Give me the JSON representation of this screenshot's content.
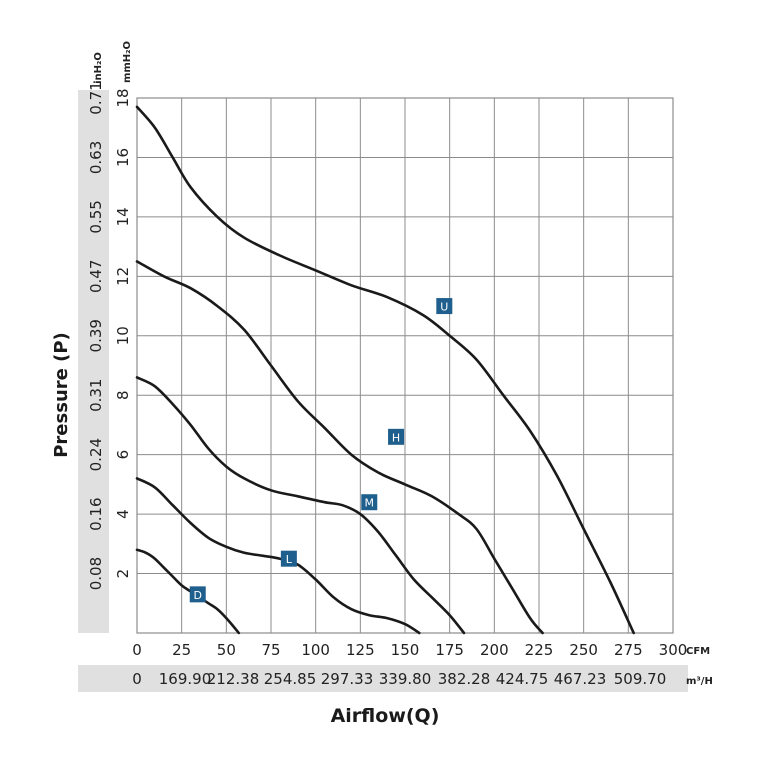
{
  "chart_data": {
    "type": "line",
    "title": "",
    "xlabel": "Airflow(Q)",
    "ylabel": "Pressure (P)",
    "x_unit": "CFM",
    "x_unit2": "m³/H",
    "y_unit": "mmH₂O",
    "y_unit2": "inH₂O",
    "xlim": [
      0,
      300
    ],
    "ylim": [
      0,
      18
    ],
    "grid": true,
    "legend": "none",
    "x_ticks": [
      "0",
      "25",
      "50",
      "75",
      "100",
      "125",
      "150",
      "175",
      "200",
      "225",
      "250",
      "275",
      "300"
    ],
    "x_ticks_secondary": [
      "0",
      "169.90",
      "212.38",
      "254.85",
      "297.33",
      "339.80",
      "382.28",
      "424.75",
      "467.23",
      "509.70"
    ],
    "y_ticks": [
      "2",
      "4",
      "6",
      "8",
      "10",
      "12",
      "14",
      "16",
      "18"
    ],
    "y_ticks_secondary": [
      "0.08",
      "0.16",
      "0.24",
      "0.31",
      "0.39",
      "0.47",
      "0.55",
      "0.63",
      "0.71"
    ],
    "series": [
      {
        "name": "U",
        "label_at": [
          172,
          11.0
        ],
        "x": [
          0,
          10,
          20,
          30,
          45,
          60,
          80,
          100,
          120,
          140,
          160,
          175,
          190,
          205,
          220,
          235,
          250,
          265,
          278
        ],
        "y": [
          17.7,
          17.0,
          16.0,
          15.0,
          14.0,
          13.3,
          12.7,
          12.2,
          11.7,
          11.3,
          10.7,
          10.0,
          9.2,
          8.0,
          6.8,
          5.3,
          3.5,
          1.7,
          0
        ]
      },
      {
        "name": "H",
        "label_at": [
          145,
          6.6
        ],
        "x": [
          0,
          15,
          30,
          45,
          60,
          75,
          90,
          105,
          120,
          135,
          150,
          165,
          180,
          190,
          200,
          210,
          220,
          227
        ],
        "y": [
          12.5,
          12.0,
          11.6,
          11.0,
          10.2,
          9.0,
          7.8,
          6.9,
          6.0,
          5.4,
          5.0,
          4.6,
          4.0,
          3.5,
          2.5,
          1.5,
          0.5,
          0
        ]
      },
      {
        "name": "M",
        "label_at": [
          130,
          4.4
        ],
        "x": [
          0,
          10,
          20,
          30,
          40,
          50,
          60,
          75,
          90,
          105,
          115,
          125,
          135,
          145,
          155,
          165,
          175,
          183
        ],
        "y": [
          8.6,
          8.3,
          7.7,
          7.0,
          6.2,
          5.6,
          5.2,
          4.8,
          4.6,
          4.4,
          4.3,
          4.0,
          3.4,
          2.6,
          1.8,
          1.2,
          0.6,
          0
        ]
      },
      {
        "name": "L",
        "label_at": [
          85,
          2.5
        ],
        "x": [
          0,
          10,
          20,
          30,
          40,
          50,
          60,
          70,
          80,
          90,
          100,
          110,
          120,
          130,
          140,
          150,
          158
        ],
        "y": [
          5.2,
          4.9,
          4.3,
          3.7,
          3.2,
          2.9,
          2.7,
          2.6,
          2.5,
          2.3,
          1.8,
          1.2,
          0.8,
          0.6,
          0.5,
          0.3,
          0
        ]
      },
      {
        "name": "D",
        "label_at": [
          34,
          1.3
        ],
        "x": [
          0,
          5,
          10,
          15,
          20,
          25,
          30,
          35,
          40,
          45,
          50,
          57
        ],
        "y": [
          2.8,
          2.7,
          2.5,
          2.2,
          1.9,
          1.6,
          1.4,
          1.2,
          1.0,
          0.8,
          0.5,
          0
        ]
      }
    ]
  },
  "colors": {
    "curve": "#1a1a1a",
    "grid": "#8c8c8c",
    "label_box": "#1f5f8e",
    "label_text": "#ffffff",
    "axis_band": "#e0e0e0"
  }
}
